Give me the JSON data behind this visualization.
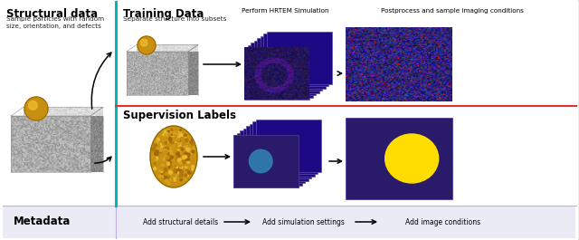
{
  "bg_color": "#ffffff",
  "outer_border_color": "#c8b8e8",
  "cyan_border_color": "#00b8b8",
  "red_divider_color": "#e03030",
  "metadata_bg": "#eeeef8",
  "purple_dark": "#2a1a6a",
  "purple_mid": "#3a2a8a",
  "gold_color": "#d4a020",
  "yellow_color": "#ffdd00",
  "blue_spot": "#3080b0",
  "title_structural": "Structural data",
  "subtitle_structural": "Sample particles with random\nsize, orientation, and defects",
  "title_training": "Training Data",
  "subtitle_training": "Separate structure into subsets",
  "label_hrtem": "Perform HRTEM Simulation",
  "label_postprocess": "Postprocess and sample imaging conditions",
  "title_supervision": "Supervision Labels",
  "label_metadata": "Metadata",
  "meta1": "Add structural details",
  "meta2": "Add simulation settings",
  "meta3": "Add image conditions"
}
